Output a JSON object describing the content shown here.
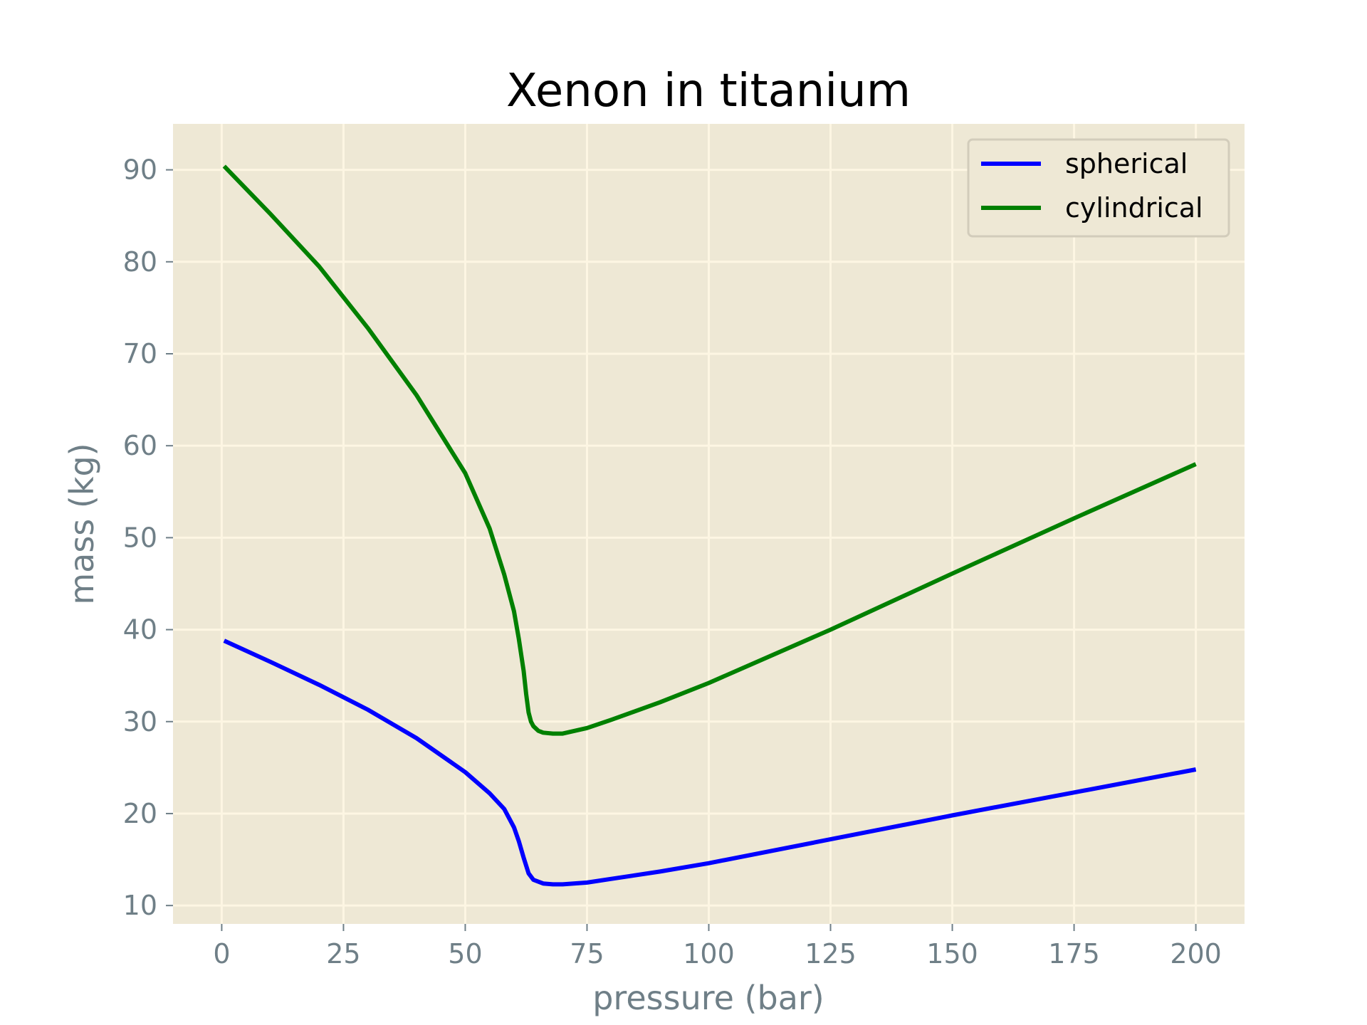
{
  "chart_data": {
    "type": "line",
    "title": "Xenon in titanium",
    "xlabel": "pressure (bar)",
    "ylabel": "mass (kg)",
    "xlim": [
      -10,
      210
    ],
    "ylim": [
      8,
      95
    ],
    "xticks": [
      0,
      25,
      50,
      75,
      100,
      125,
      150,
      175,
      200
    ],
    "yticks": [
      10,
      20,
      30,
      40,
      50,
      60,
      70,
      80,
      90
    ],
    "grid": true,
    "legend_position": "top-right",
    "background_color": "#eee8d5",
    "series": [
      {
        "name": "spherical",
        "color": "#0000ff",
        "x": [
          0.5,
          10,
          20,
          30,
          40,
          50,
          55,
          58,
          60,
          61,
          62,
          63,
          64,
          66,
          68,
          70,
          75,
          80,
          90,
          100,
          125,
          150,
          175,
          200
        ],
        "y": [
          38.8,
          36.5,
          34.0,
          31.3,
          28.2,
          24.5,
          22.2,
          20.5,
          18.5,
          17.0,
          15.2,
          13.5,
          12.8,
          12.4,
          12.3,
          12.3,
          12.5,
          12.9,
          13.7,
          14.6,
          17.2,
          19.8,
          22.3,
          24.8
        ]
      },
      {
        "name": "cylindrical",
        "color": "#008000",
        "x": [
          0.5,
          10,
          20,
          30,
          40,
          50,
          55,
          58,
          60,
          61,
          62,
          62.5,
          63,
          63.5,
          64,
          65,
          66,
          68,
          70,
          75,
          80,
          90,
          100,
          125,
          150,
          175,
          200
        ],
        "y": [
          90.4,
          85.2,
          79.5,
          72.8,
          65.5,
          57.0,
          51.0,
          46.0,
          42.0,
          39.0,
          35.5,
          33.0,
          31.0,
          30.0,
          29.5,
          29.0,
          28.8,
          28.7,
          28.7,
          29.3,
          30.2,
          32.1,
          34.2,
          40.0,
          46.1,
          52.1,
          58.0
        ]
      }
    ]
  }
}
